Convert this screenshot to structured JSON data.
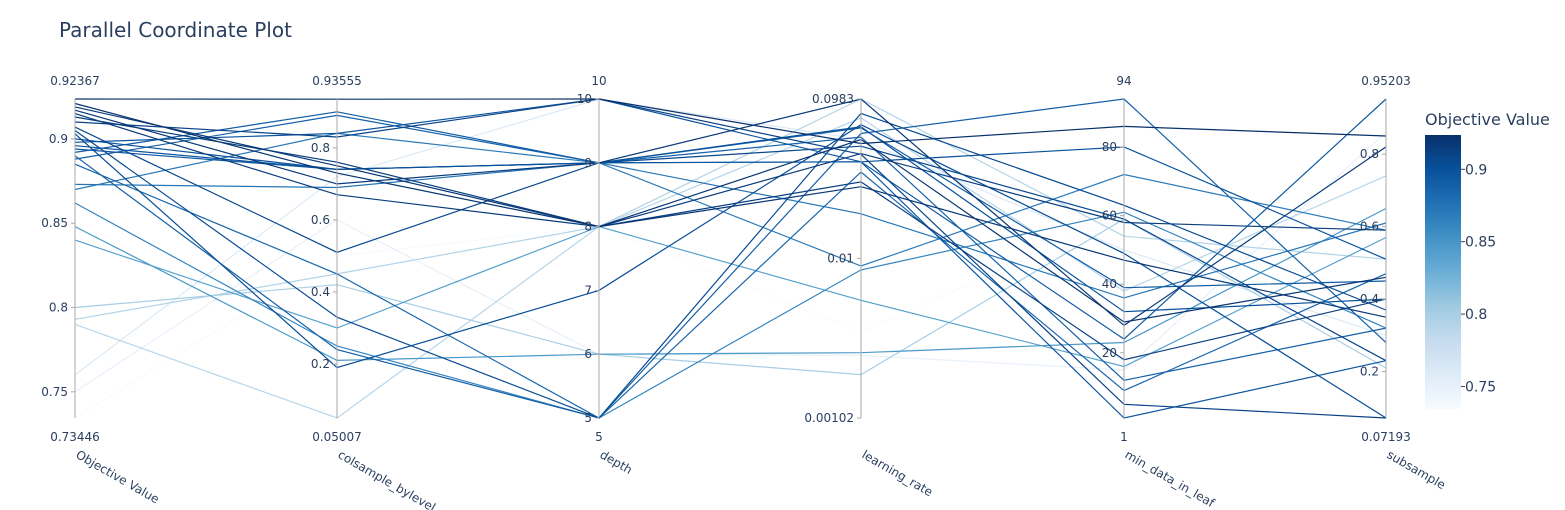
{
  "chart_data": {
    "type": "parallel_coordinates",
    "title": "Parallel Coordinate Plot",
    "dimensions": [
      {
        "key": "objective",
        "label": "Objective Value",
        "range": [
          0.73446,
          0.92367
        ],
        "range_labels": [
          "0.73446",
          "0.92367"
        ],
        "scale": "linear",
        "ticks": [
          {
            "v": 0.75,
            "t": "0.75"
          },
          {
            "v": 0.8,
            "t": "0.8"
          },
          {
            "v": 0.85,
            "t": "0.85"
          },
          {
            "v": 0.9,
            "t": "0.9"
          }
        ]
      },
      {
        "key": "colsample_bylevel",
        "label": "colsample_bylevel",
        "range": [
          0.05007,
          0.93555
        ],
        "range_labels": [
          "0.05007",
          "0.93555"
        ],
        "scale": "linear",
        "ticks": [
          {
            "v": 0.2,
            "t": "0.2"
          },
          {
            "v": 0.4,
            "t": "0.4"
          },
          {
            "v": 0.6,
            "t": "0.6"
          },
          {
            "v": 0.8,
            "t": "0.8"
          }
        ]
      },
      {
        "key": "depth",
        "label": "depth",
        "range": [
          5,
          10
        ],
        "range_labels": [
          "5",
          "10"
        ],
        "scale": "linear",
        "ticks": [
          {
            "v": 5,
            "t": "5"
          },
          {
            "v": 6,
            "t": "6"
          },
          {
            "v": 7,
            "t": "7"
          },
          {
            "v": 8,
            "t": "8"
          },
          {
            "v": 9,
            "t": "9"
          },
          {
            "v": 10,
            "t": "10"
          }
        ]
      },
      {
        "key": "learning_rate",
        "label": "learning_rate",
        "range": [
          0.00102,
          0.0983
        ],
        "range_labels": [
          "",
          ""
        ],
        "scale": "log",
        "ticks": [
          {
            "v": 0.00102,
            "t": "0.00102"
          },
          {
            "v": 0.01,
            "t": "0.01"
          },
          {
            "v": 0.0983,
            "t": "0.0983"
          }
        ]
      },
      {
        "key": "min_data_in_leaf",
        "label": "min_data_in_leaf",
        "range": [
          1,
          94
        ],
        "range_labels": [
          "1",
          "94"
        ],
        "scale": "linear",
        "ticks": [
          {
            "v": 20,
            "t": "20"
          },
          {
            "v": 40,
            "t": "40"
          },
          {
            "v": 60,
            "t": "60"
          },
          {
            "v": 80,
            "t": "80"
          }
        ]
      },
      {
        "key": "subsample",
        "label": "subsample",
        "range": [
          0.07193,
          0.95203
        ],
        "range_labels": [
          "0.07193",
          "0.95203"
        ],
        "scale": "linear",
        "ticks": [
          {
            "v": 0.2,
            "t": "0.2"
          },
          {
            "v": 0.4,
            "t": "0.4"
          },
          {
            "v": 0.6,
            "t": "0.6"
          },
          {
            "v": 0.8,
            "t": "0.8"
          }
        ]
      }
    ],
    "colorbar": {
      "title": "Objective Value",
      "range": [
        0.73446,
        0.92367
      ],
      "colors": [
        "#f7fbff",
        "#deebf7",
        "#c6dbef",
        "#9ecae1",
        "#6baed6",
        "#4292c6",
        "#2171b5",
        "#08519c",
        "#08306b"
      ],
      "ticks": [
        {
          "v": 0.75,
          "t": "0.75"
        },
        {
          "v": 0.8,
          "t": "0.8"
        },
        {
          "v": 0.85,
          "t": "0.85"
        },
        {
          "v": 0.9,
          "t": "0.9"
        }
      ]
    },
    "trials": [
      [
        0.92367,
        0.935,
        10,
        0.052,
        86,
        0.85
      ],
      [
        0.921,
        0.73,
        8,
        0.055,
        29,
        0.46
      ],
      [
        0.919,
        0.75,
        8,
        0.028,
        47,
        0.35
      ],
      [
        0.917,
        0.7,
        9,
        0.0983,
        28,
        0.82
      ],
      [
        0.915,
        0.67,
        8,
        0.045,
        58,
        0.59
      ],
      [
        0.913,
        0.76,
        8,
        0.03,
        18,
        0.4
      ],
      [
        0.91,
        0.83,
        10,
        0.0445,
        5,
        0.07193
      ],
      [
        0.907,
        0.51,
        9,
        0.05,
        59,
        0.23
      ],
      [
        0.905,
        0.33,
        5,
        0.08,
        63,
        0.37
      ],
      [
        0.903,
        0.19,
        7,
        0.068,
        49,
        0.07193
      ],
      [
        0.9,
        0.74,
        9,
        0.066,
        32,
        0.4
      ],
      [
        0.898,
        0.84,
        10,
        0.04,
        80,
        0.51
      ],
      [
        0.896,
        0.74,
        9,
        0.04,
        1,
        0.23
      ],
      [
        0.894,
        0.74,
        9,
        0.04,
        24,
        0.95203
      ],
      [
        0.892,
        0.9,
        9,
        0.065,
        39,
        0.45
      ],
      [
        0.89,
        0.24,
        5,
        0.06,
        94,
        0.28
      ],
      [
        0.888,
        0.89,
        9,
        0.057,
        12,
        0.32
      ],
      [
        0.885,
        0.45,
        5,
        0.0345,
        9,
        0.47
      ],
      [
        0.873,
        0.69,
        9,
        0.019,
        36,
        0.61
      ],
      [
        0.87,
        0.84,
        9,
        0.009,
        72,
        0.59
      ],
      [
        0.862,
        0.25,
        5,
        0.0085,
        61,
        0.32
      ],
      [
        0.848,
        0.21,
        6,
        0.0026,
        23,
        0.65
      ],
      [
        0.84,
        0.3,
        8,
        0.0055,
        16,
        0.57
      ],
      [
        0.8,
        0.42,
        6,
        0.0019,
        59,
        0.21
      ],
      [
        0.793,
        0.45,
        8,
        0.0983,
        54,
        0.51
      ],
      [
        0.79,
        0.05007,
        8,
        0.075,
        38,
        0.74
      ],
      [
        0.76,
        0.72,
        10,
        0.055,
        50,
        0.3
      ],
      [
        0.75,
        0.6,
        6,
        0.0025,
        15,
        0.86
      ],
      [
        0.73446,
        0.5,
        8,
        0.0035,
        60,
        0.4
      ]
    ]
  }
}
